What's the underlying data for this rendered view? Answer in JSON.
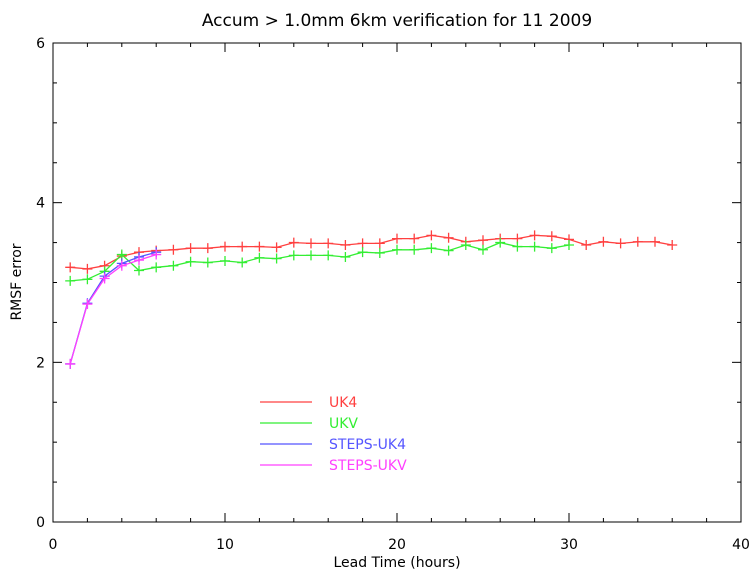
{
  "chart_data": {
    "type": "line",
    "title": "Accum > 1.0mm 6km verification for 11 2009",
    "xlabel": "Lead Time (hours)",
    "ylabel": "RMSF error",
    "xlim": [
      0,
      40
    ],
    "ylim": [
      0,
      6
    ],
    "xticks": [
      "0",
      "10",
      "20",
      "30",
      "40"
    ],
    "yticks": [
      "0",
      "2",
      "4",
      "6"
    ],
    "grid": false,
    "legend_position": "lower-left",
    "series": [
      {
        "name": "UK4",
        "color": "#ff4040",
        "x": [
          1,
          2,
          3,
          4,
          5,
          6,
          7,
          8,
          9,
          10,
          11,
          12,
          13,
          14,
          15,
          16,
          17,
          18,
          19,
          20,
          21,
          22,
          23,
          24,
          25,
          26,
          27,
          28,
          29,
          30,
          31,
          32,
          33,
          34,
          35,
          36
        ],
        "y": [
          3.19,
          3.17,
          3.21,
          3.33,
          3.38,
          3.4,
          3.41,
          3.43,
          3.43,
          3.45,
          3.45,
          3.45,
          3.44,
          3.5,
          3.49,
          3.49,
          3.47,
          3.49,
          3.49,
          3.55,
          3.55,
          3.59,
          3.56,
          3.51,
          3.53,
          3.55,
          3.55,
          3.59,
          3.58,
          3.54,
          3.47,
          3.51,
          3.49,
          3.51,
          3.51,
          3.47
        ]
      },
      {
        "name": "UKV",
        "color": "#33ee33",
        "x": [
          1,
          2,
          3,
          4,
          5,
          6,
          7,
          8,
          9,
          10,
          11,
          12,
          13,
          14,
          15,
          16,
          17,
          18,
          19,
          20,
          21,
          22,
          23,
          24,
          25,
          26,
          27,
          28,
          29,
          30
        ],
        "y": [
          3.02,
          3.04,
          3.14,
          3.35,
          3.15,
          3.19,
          3.21,
          3.26,
          3.25,
          3.27,
          3.25,
          3.31,
          3.3,
          3.34,
          3.34,
          3.34,
          3.32,
          3.38,
          3.37,
          3.41,
          3.41,
          3.43,
          3.4,
          3.47,
          3.41,
          3.5,
          3.45,
          3.45,
          3.43,
          3.47
        ]
      },
      {
        "name": "STEPS-UK4",
        "color": "#5555ff",
        "x": [
          1,
          2,
          3,
          4,
          5,
          6
        ],
        "y": [
          1.98,
          2.74,
          3.08,
          3.24,
          3.32,
          3.38
        ]
      },
      {
        "name": "STEPS-UKV",
        "color": "#ff40ff",
        "x": [
          1,
          2,
          3,
          4,
          5,
          6
        ],
        "y": [
          1.98,
          2.73,
          3.05,
          3.21,
          3.28,
          3.35
        ]
      }
    ]
  }
}
